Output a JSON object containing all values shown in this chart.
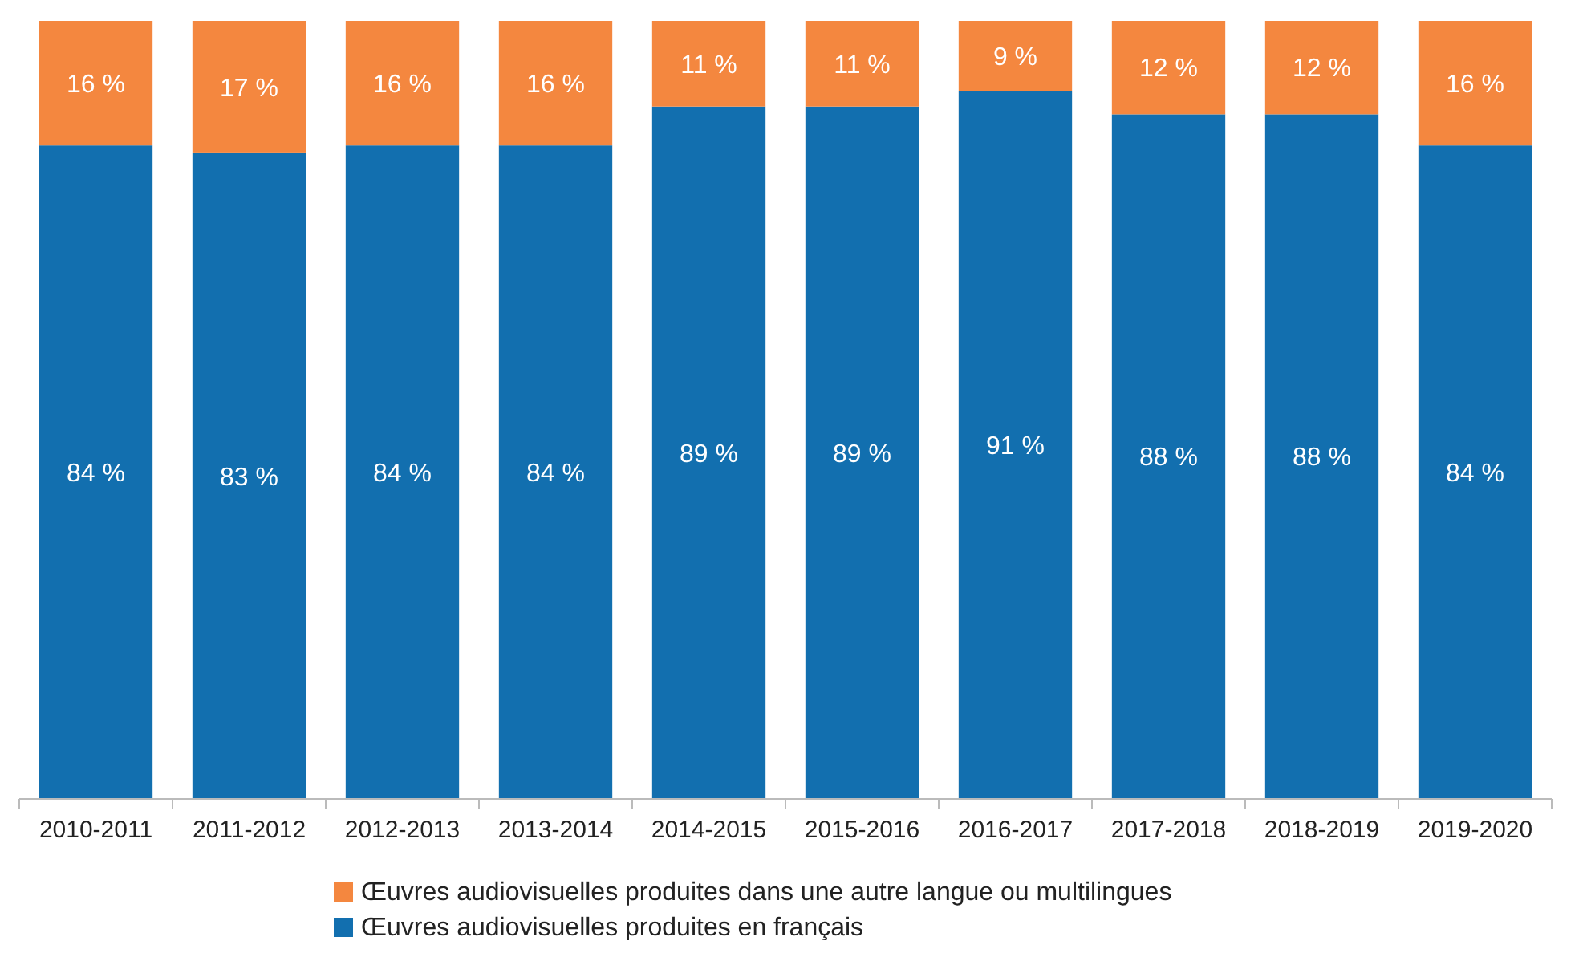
{
  "chart_data": {
    "type": "bar",
    "stacked": true,
    "categories": [
      "2010-2011",
      "2011-2012",
      "2012-2013",
      "2013-2014",
      "2014-2015",
      "2015-2016",
      "2016-2017",
      "2017-2018",
      "2018-2019",
      "2019-2020"
    ],
    "ylim": [
      0,
      100
    ],
    "legend": "bottom",
    "tick_labels": "x",
    "series": [
      {
        "name": "Œuvres audiovisuelles produites en français",
        "color": "#126faf",
        "values": [
          84,
          83,
          84,
          84,
          89,
          89,
          91,
          88,
          88,
          84
        ],
        "value_labels": [
          "84 %",
          "83 %",
          "84 %",
          "84 %",
          "89 %",
          "89 %",
          "91 %",
          "88 %",
          "88 %",
          "84 %"
        ]
      },
      {
        "name": "Œuvres audiovisuelles produites dans une autre langue ou multilingues",
        "color": "#f4873f",
        "values": [
          16,
          17,
          16,
          16,
          11,
          11,
          9,
          12,
          12,
          16
        ],
        "value_labels": [
          "16 %",
          "17 %",
          "16 %",
          "16 %",
          "11 %",
          "11 %",
          "9 %",
          "12 %",
          "12 %",
          "16 %"
        ]
      }
    ]
  }
}
